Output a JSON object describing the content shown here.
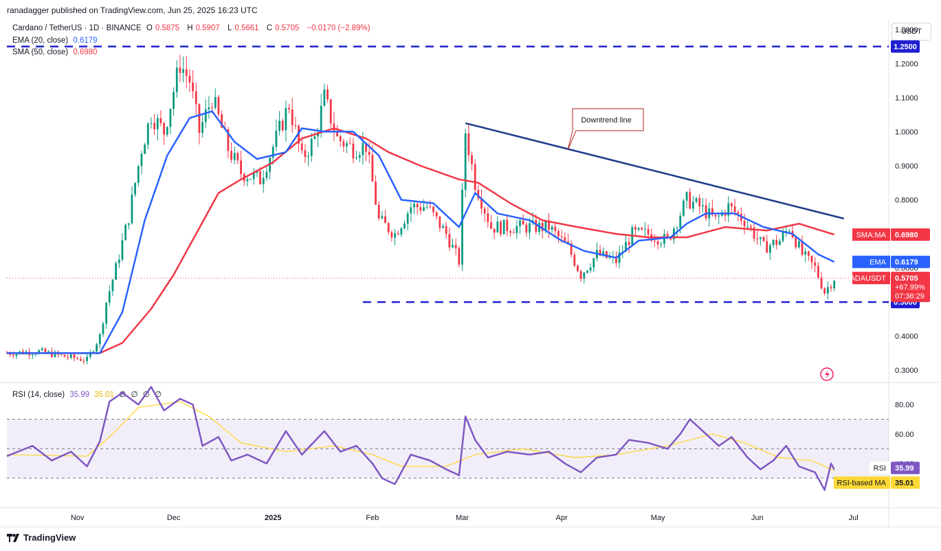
{
  "header": {
    "published": "ranadagger published on TradingView.com, Jun 25, 2025 16:23 UTC"
  },
  "legend": {
    "symbol": "Cardano / TetherUS · 1D · BINANCE",
    "open_label": "O",
    "open": "0.5875",
    "high_label": "H",
    "high": "0.5907",
    "low_label": "L",
    "low": "0.5661",
    "close_label": "C",
    "close": "0.5705",
    "change": "−0.0170 (−2.89%)",
    "ema_label": "EMA (20, close)",
    "ema_value": "0.6179",
    "sma_label": "SMA (50, close)",
    "sma_value": "0.6980"
  },
  "rsi_legend": {
    "label": "RSI (14, close)",
    "v1": "35.99",
    "v2": "35.01",
    "v3": "∅",
    "v4": "∅",
    "v5": "∅",
    "v6": "∅"
  },
  "currency": "USDT",
  "brand": "TradingView",
  "colors": {
    "up": "#089981",
    "down": "#f23645",
    "ema": "#2962ff",
    "sma": "#f23645",
    "rsi": "#7e57c2",
    "rsi_ma": "#fdd835",
    "level_line": "#1f1fd1",
    "trendline": "#1e3a8a"
  },
  "chart_data": [
    {
      "type": "candlestick",
      "title": "Cardano / TetherUS · 1D · BINANCE",
      "ylim": [
        0.27,
        1.33
      ],
      "y_ticks": [
        "1.3000",
        "1.2000",
        "1.1000",
        "1.0000",
        "0.9000",
        "0.8000",
        "0.7000",
        "0.6000",
        "0.5000",
        "0.4000",
        "0.3000"
      ],
      "x_ticks": [
        "Nov",
        "Dec",
        "2025",
        "Feb",
        "Mar",
        "Apr",
        "May",
        "Jun",
        "Jul"
      ],
      "x_range": [
        "2024-10-10",
        "2025-07-12"
      ],
      "levels": [
        {
          "value": 1.25,
          "label": "1.2500",
          "from": "2024-10-10"
        },
        {
          "value": 0.5,
          "label": "0.5000",
          "from": "2025-01-29"
        }
      ],
      "trendline": {
        "label": "Downtrend line",
        "from": [
          "2025-03-02",
          1.025
        ],
        "to": [
          "2025-06-28",
          0.745
        ]
      },
      "price_tags": [
        {
          "name": "SMA:MA",
          "value": "0.6980"
        },
        {
          "name": "EMA",
          "value": "0.6179"
        },
        {
          "name": "ADAUSDT",
          "value": "0.5705",
          "sub1": "+67.99%",
          "sub2": "07:36:29"
        }
      ],
      "anchors": [
        {
          "date": "2024-10-10",
          "price": 0.35
        },
        {
          "date": "2024-10-20",
          "price": 0.355
        },
        {
          "date": "2024-10-28",
          "price": 0.34
        },
        {
          "date": "2024-11-04",
          "price": 0.33
        },
        {
          "date": "2024-11-08",
          "price": 0.4
        },
        {
          "date": "2024-11-10",
          "price": 0.5
        },
        {
          "date": "2024-11-13",
          "price": 0.6
        },
        {
          "date": "2024-11-17",
          "price": 0.75
        },
        {
          "date": "2024-11-21",
          "price": 0.95
        },
        {
          "date": "2024-11-24",
          "price": 1.05
        },
        {
          "date": "2024-11-28",
          "price": 1.0
        },
        {
          "date": "2024-12-03",
          "price": 1.2
        },
        {
          "date": "2024-12-06",
          "price": 1.15
        },
        {
          "date": "2024-12-09",
          "price": 1.0
        },
        {
          "date": "2024-12-13",
          "price": 1.1
        },
        {
          "date": "2024-12-18",
          "price": 0.95
        },
        {
          "date": "2024-12-22",
          "price": 0.88
        },
        {
          "date": "2024-12-28",
          "price": 0.86
        },
        {
          "date": "2025-01-02",
          "price": 0.98
        },
        {
          "date": "2025-01-06",
          "price": 1.08
        },
        {
          "date": "2025-01-10",
          "price": 0.92
        },
        {
          "date": "2025-01-14",
          "price": 0.98
        },
        {
          "date": "2025-01-17",
          "price": 1.1
        },
        {
          "date": "2025-01-21",
          "price": 0.98
        },
        {
          "date": "2025-01-26",
          "price": 0.95
        },
        {
          "date": "2025-01-30",
          "price": 0.96
        },
        {
          "date": "2025-02-03",
          "price": 0.74
        },
        {
          "date": "2025-02-08",
          "price": 0.7
        },
        {
          "date": "2025-02-13",
          "price": 0.78
        },
        {
          "date": "2025-02-18",
          "price": 0.78
        },
        {
          "date": "2025-02-24",
          "price": 0.7
        },
        {
          "date": "2025-02-28",
          "price": 0.62
        },
        {
          "date": "2025-03-02",
          "price": 1.0
        },
        {
          "date": "2025-03-05",
          "price": 0.85
        },
        {
          "date": "2025-03-10",
          "price": 0.72
        },
        {
          "date": "2025-03-16",
          "price": 0.72
        },
        {
          "date": "2025-03-22",
          "price": 0.72
        },
        {
          "date": "2025-03-28",
          "price": 0.72
        },
        {
          "date": "2025-04-03",
          "price": 0.66
        },
        {
          "date": "2025-04-07",
          "price": 0.58
        },
        {
          "date": "2025-04-12",
          "price": 0.64
        },
        {
          "date": "2025-04-18",
          "price": 0.62
        },
        {
          "date": "2025-04-23",
          "price": 0.7
        },
        {
          "date": "2025-04-28",
          "price": 0.7
        },
        {
          "date": "2025-05-04",
          "price": 0.68
        },
        {
          "date": "2025-05-10",
          "price": 0.8
        },
        {
          "date": "2025-05-14",
          "price": 0.78
        },
        {
          "date": "2025-05-19",
          "price": 0.74
        },
        {
          "date": "2025-05-23",
          "price": 0.78
        },
        {
          "date": "2025-05-28",
          "price": 0.74
        },
        {
          "date": "2025-06-03",
          "price": 0.66
        },
        {
          "date": "2025-06-08",
          "price": 0.68
        },
        {
          "date": "2025-06-11",
          "price": 0.72
        },
        {
          "date": "2025-06-15",
          "price": 0.64
        },
        {
          "date": "2025-06-19",
          "price": 0.6
        },
        {
          "date": "2025-06-22",
          "price": 0.53
        },
        {
          "date": "2025-06-25",
          "price": 0.5705
        }
      ],
      "ema_anchors": [
        {
          "date": "2024-10-10",
          "value": 0.35
        },
        {
          "date": "2024-11-08",
          "value": 0.35
        },
        {
          "date": "2024-11-15",
          "value": 0.47
        },
        {
          "date": "2024-11-22",
          "value": 0.74
        },
        {
          "date": "2024-11-29",
          "value": 0.93
        },
        {
          "date": "2024-12-06",
          "value": 1.04
        },
        {
          "date": "2024-12-13",
          "value": 1.06
        },
        {
          "date": "2024-12-20",
          "value": 0.97
        },
        {
          "date": "2024-12-27",
          "value": 0.92
        },
        {
          "date": "2025-01-05",
          "value": 0.94
        },
        {
          "date": "2025-01-10",
          "value": 1.01
        },
        {
          "date": "2025-01-17",
          "value": 1.0
        },
        {
          "date": "2025-01-26",
          "value": 1.0
        },
        {
          "date": "2025-02-03",
          "value": 0.93
        },
        {
          "date": "2025-02-10",
          "value": 0.8
        },
        {
          "date": "2025-02-20",
          "value": 0.79
        },
        {
          "date": "2025-02-28",
          "value": 0.72
        },
        {
          "date": "2025-03-05",
          "value": 0.82
        },
        {
          "date": "2025-03-12",
          "value": 0.76
        },
        {
          "date": "2025-03-22",
          "value": 0.74
        },
        {
          "date": "2025-04-01",
          "value": 0.68
        },
        {
          "date": "2025-04-08",
          "value": 0.65
        },
        {
          "date": "2025-04-18",
          "value": 0.63
        },
        {
          "date": "2025-04-25",
          "value": 0.68
        },
        {
          "date": "2025-05-05",
          "value": 0.69
        },
        {
          "date": "2025-05-10",
          "value": 0.73
        },
        {
          "date": "2025-05-16",
          "value": 0.76
        },
        {
          "date": "2025-05-25",
          "value": 0.76
        },
        {
          "date": "2025-06-03",
          "value": 0.72
        },
        {
          "date": "2025-06-12",
          "value": 0.7
        },
        {
          "date": "2025-06-20",
          "value": 0.64
        },
        {
          "date": "2025-06-25",
          "value": 0.6179
        }
      ],
      "sma_anchors": [
        {
          "date": "2024-10-10",
          "value": 0.35
        },
        {
          "date": "2024-11-08",
          "value": 0.35
        },
        {
          "date": "2024-11-15",
          "value": 0.38
        },
        {
          "date": "2024-11-24",
          "value": 0.48
        },
        {
          "date": "2024-12-01",
          "value": 0.58
        },
        {
          "date": "2024-12-08",
          "value": 0.7
        },
        {
          "date": "2024-12-15",
          "value": 0.82
        },
        {
          "date": "2024-12-22",
          "value": 0.86
        },
        {
          "date": "2025-01-01",
          "value": 0.91
        },
        {
          "date": "2025-01-10",
          "value": 0.98
        },
        {
          "date": "2025-01-20",
          "value": 1.01
        },
        {
          "date": "2025-01-30",
          "value": 0.98
        },
        {
          "date": "2025-02-06",
          "value": 0.94
        },
        {
          "date": "2025-02-16",
          "value": 0.9
        },
        {
          "date": "2025-02-28",
          "value": 0.86
        },
        {
          "date": "2025-03-06",
          "value": 0.85
        },
        {
          "date": "2025-03-16",
          "value": 0.79
        },
        {
          "date": "2025-03-26",
          "value": 0.74
        },
        {
          "date": "2025-04-06",
          "value": 0.72
        },
        {
          "date": "2025-04-18",
          "value": 0.7
        },
        {
          "date": "2025-04-28",
          "value": 0.69
        },
        {
          "date": "2025-05-10",
          "value": 0.69
        },
        {
          "date": "2025-05-22",
          "value": 0.72
        },
        {
          "date": "2025-06-04",
          "value": 0.71
        },
        {
          "date": "2025-06-14",
          "value": 0.73
        },
        {
          "date": "2025-06-25",
          "value": 0.698
        }
      ]
    },
    {
      "type": "line",
      "title": "RSI (14, close)",
      "ylim": [
        10,
        95
      ],
      "y_ticks": [
        "80.00",
        "60.00",
        "40.00"
      ],
      "bands": {
        "upper": 70,
        "middle": 50,
        "lower": 30
      },
      "series": [
        {
          "name": "RSI",
          "last": "35.99",
          "points": [
            {
              "date": "2024-10-10",
              "value": 45
            },
            {
              "date": "2024-10-18",
              "value": 52
            },
            {
              "date": "2024-10-24",
              "value": 42
            },
            {
              "date": "2024-10-30",
              "value": 48
            },
            {
              "date": "2024-11-04",
              "value": 38
            },
            {
              "date": "2024-11-08",
              "value": 55
            },
            {
              "date": "2024-11-11",
              "value": 82
            },
            {
              "date": "2024-11-15",
              "value": 88
            },
            {
              "date": "2024-11-20",
              "value": 80
            },
            {
              "date": "2024-11-24",
              "value": 92
            },
            {
              "date": "2024-11-28",
              "value": 76
            },
            {
              "date": "2024-12-03",
              "value": 84
            },
            {
              "date": "2024-12-07",
              "value": 80
            },
            {
              "date": "2024-12-10",
              "value": 52
            },
            {
              "date": "2024-12-15",
              "value": 58
            },
            {
              "date": "2024-12-19",
              "value": 42
            },
            {
              "date": "2024-12-24",
              "value": 46
            },
            {
              "date": "2024-12-30",
              "value": 40
            },
            {
              "date": "2025-01-05",
              "value": 62
            },
            {
              "date": "2025-01-10",
              "value": 46
            },
            {
              "date": "2025-01-17",
              "value": 62
            },
            {
              "date": "2025-01-22",
              "value": 48
            },
            {
              "date": "2025-01-27",
              "value": 52
            },
            {
              "date": "2025-02-01",
              "value": 40
            },
            {
              "date": "2025-02-04",
              "value": 30
            },
            {
              "date": "2025-02-08",
              "value": 26
            },
            {
              "date": "2025-02-13",
              "value": 46
            },
            {
              "date": "2025-02-19",
              "value": 42
            },
            {
              "date": "2025-02-24",
              "value": 36
            },
            {
              "date": "2025-02-28",
              "value": 32
            },
            {
              "date": "2025-03-02",
              "value": 72
            },
            {
              "date": "2025-03-05",
              "value": 56
            },
            {
              "date": "2025-03-09",
              "value": 44
            },
            {
              "date": "2025-03-15",
              "value": 48
            },
            {
              "date": "2025-03-22",
              "value": 46
            },
            {
              "date": "2025-03-28",
              "value": 48
            },
            {
              "date": "2025-04-02",
              "value": 40
            },
            {
              "date": "2025-04-07",
              "value": 34
            },
            {
              "date": "2025-04-12",
              "value": 44
            },
            {
              "date": "2025-04-18",
              "value": 46
            },
            {
              "date": "2025-04-22",
              "value": 56
            },
            {
              "date": "2025-04-28",
              "value": 54
            },
            {
              "date": "2025-05-04",
              "value": 50
            },
            {
              "date": "2025-05-08",
              "value": 60
            },
            {
              "date": "2025-05-11",
              "value": 70
            },
            {
              "date": "2025-05-16",
              "value": 60
            },
            {
              "date": "2025-05-20",
              "value": 52
            },
            {
              "date": "2025-05-24",
              "value": 58
            },
            {
              "date": "2025-05-29",
              "value": 44
            },
            {
              "date": "2025-06-02",
              "value": 36
            },
            {
              "date": "2025-06-06",
              "value": 42
            },
            {
              "date": "2025-06-10",
              "value": 52
            },
            {
              "date": "2025-06-14",
              "value": 38
            },
            {
              "date": "2025-06-19",
              "value": 34
            },
            {
              "date": "2025-06-22",
              "value": 22
            },
            {
              "date": "2025-06-24",
              "value": 40
            },
            {
              "date": "2025-06-25",
              "value": 35.99
            }
          ]
        },
        {
          "name": "RSI-based MA",
          "last": "35.01",
          "points": [
            {
              "date": "2024-10-10",
              "value": 46
            },
            {
              "date": "2024-11-04",
              "value": 45
            },
            {
              "date": "2024-11-12",
              "value": 60
            },
            {
              "date": "2024-11-20",
              "value": 78
            },
            {
              "date": "2024-12-03",
              "value": 82
            },
            {
              "date": "2024-12-12",
              "value": 72
            },
            {
              "date": "2024-12-22",
              "value": 54
            },
            {
              "date": "2025-01-05",
              "value": 48
            },
            {
              "date": "2025-01-20",
              "value": 52
            },
            {
              "date": "2025-02-01",
              "value": 46
            },
            {
              "date": "2025-02-10",
              "value": 38
            },
            {
              "date": "2025-02-24",
              "value": 38
            },
            {
              "date": "2025-03-05",
              "value": 46
            },
            {
              "date": "2025-03-20",
              "value": 50
            },
            {
              "date": "2025-04-05",
              "value": 44
            },
            {
              "date": "2025-04-18",
              "value": 46
            },
            {
              "date": "2025-05-04",
              "value": 52
            },
            {
              "date": "2025-05-18",
              "value": 60
            },
            {
              "date": "2025-05-28",
              "value": 54
            },
            {
              "date": "2025-06-08",
              "value": 44
            },
            {
              "date": "2025-06-18",
              "value": 42
            },
            {
              "date": "2025-06-25",
              "value": 35.01
            }
          ]
        }
      ],
      "price_tags": [
        {
          "name": "RSI",
          "value": "35.99"
        },
        {
          "name": "RSI-based MA",
          "value": "35.01"
        }
      ]
    }
  ]
}
